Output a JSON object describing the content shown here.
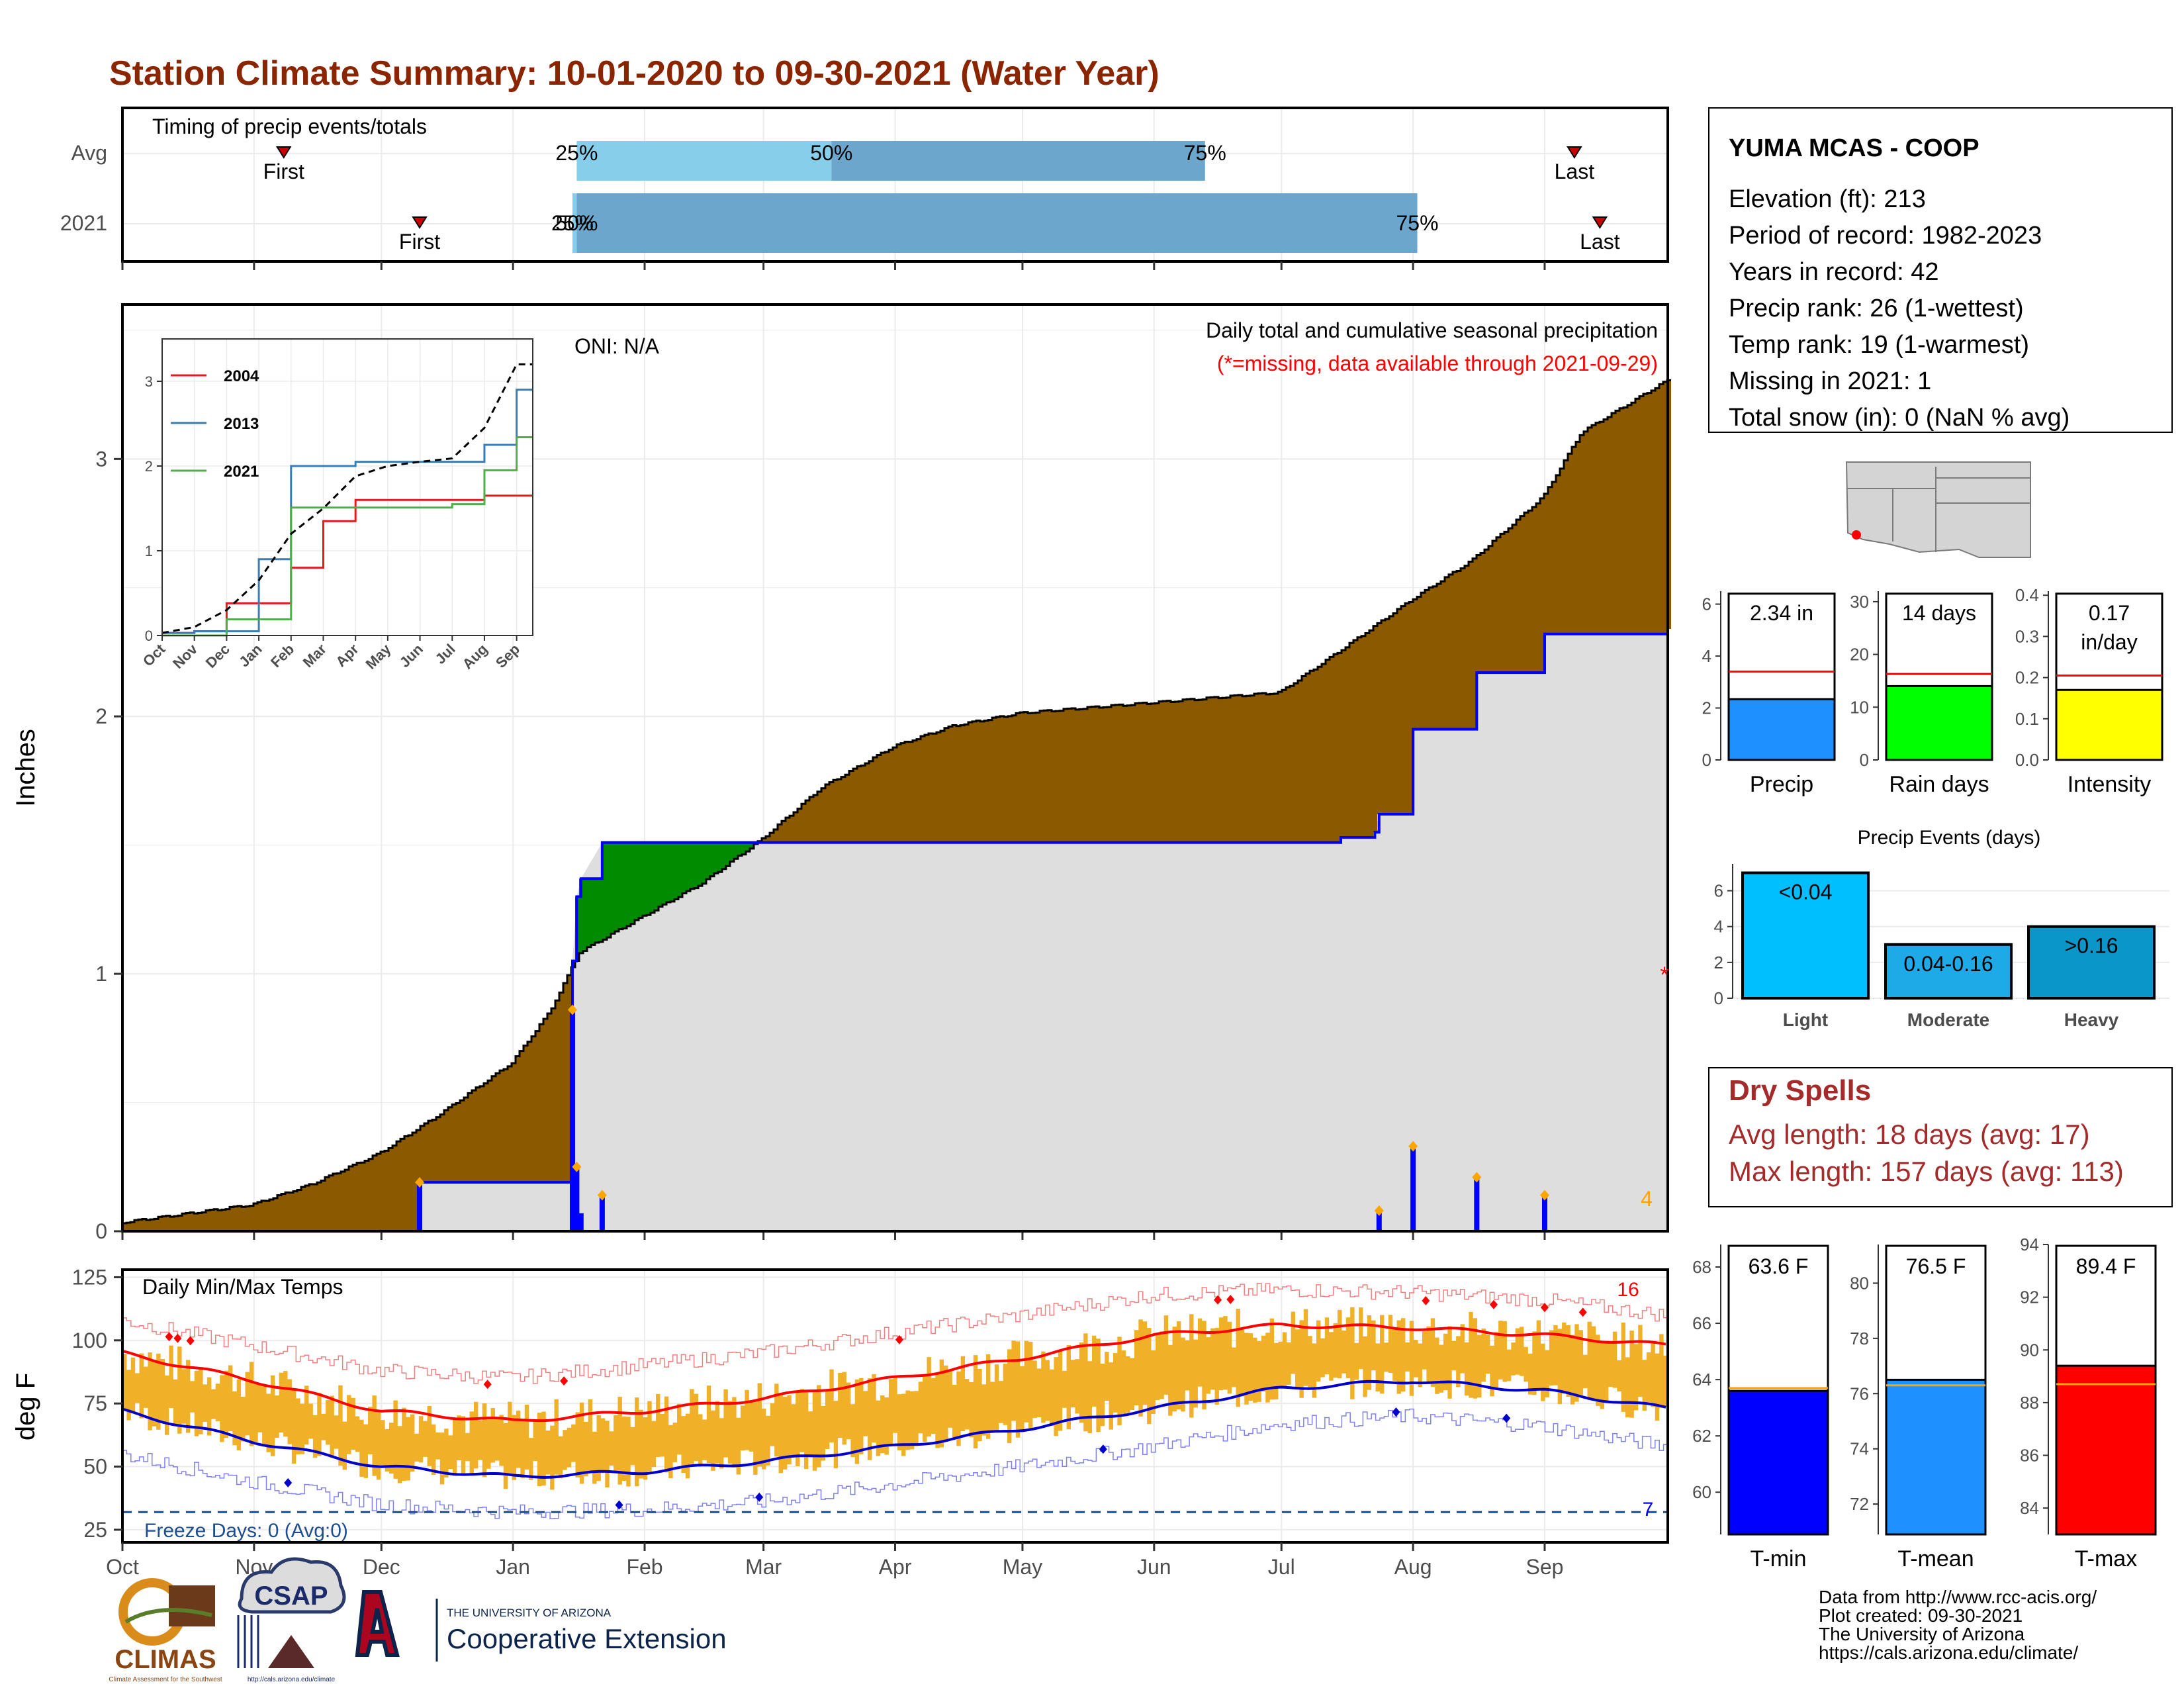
{
  "title": "Station Climate Summary: 10-01-2020 to 09-30-2021 (Water Year)",
  "colors": {
    "title": "#8B2500",
    "brown": "#8B5A00",
    "green": "#008B00",
    "blue": "#0000FF",
    "gray_fill": "#DEDEDE",
    "orange": "#F0B028",
    "light_blue_bar": "#87CEEB",
    "mid_blue_bar": "#6CA6CD",
    "red": "#FF0000",
    "dry_red": "#A52A2A"
  },
  "timing": {
    "title": "Timing of precip events/totals",
    "rows": [
      "Avg",
      "2021"
    ],
    "first_label": "First",
    "last_label": "Last",
    "avg": {
      "first": "2020-11-08",
      "last": "2021-09-08",
      "p25": "2021-01-16",
      "p50": "2021-03-17",
      "p75": "2021-06-13",
      "labels": [
        "25%",
        "50%",
        "75%"
      ]
    },
    "y2021": {
      "first": "2020-12-10",
      "last": "2021-09-14",
      "p25": "2021-01-15",
      "p50": "2021-01-16",
      "p75": "2021-08-02",
      "labels": [
        "25%",
        "50%",
        "75%"
      ]
    }
  },
  "precip_panel": {
    "ylabel": "Inches",
    "oni": "ONI: N/A",
    "subtitle": "Daily total and cumulative seasonal precipitation",
    "missing_note": "(*=missing, data available through 2021-09-29)",
    "count_label": "4",
    "missing_marker": "*",
    "yticks": [
      "0",
      "1",
      "2",
      "3"
    ]
  },
  "inset": {
    "series": [
      {
        "name": "2004",
        "color": "#E41A1C"
      },
      {
        "name": "2013",
        "color": "#377EB8"
      },
      {
        "name": "2021",
        "color": "#4DAF4A"
      }
    ],
    "xticks": [
      "Oct",
      "Nov",
      "Dec",
      "Jan",
      "Feb",
      "Mar",
      "Apr",
      "May",
      "Jun",
      "Jul",
      "Aug",
      "Sep"
    ],
    "yticks": [
      "0",
      "1",
      "2",
      "3"
    ]
  },
  "temp_panel": {
    "title": "Daily Min/Max Temps",
    "ylabel": "deg F",
    "yticks": [
      "25",
      "50",
      "75",
      "100",
      "125"
    ],
    "freeze_label": "Freeze Days: 0 (Avg:0)",
    "max_count": "16",
    "min_count": "7"
  },
  "months": [
    "Oct",
    "Nov",
    "Dec",
    "Jan",
    "Feb",
    "Mar",
    "Apr",
    "May",
    "Jun",
    "Jul",
    "Aug",
    "Sep"
  ],
  "station": {
    "name": "YUMA MCAS - COOP",
    "lines": [
      "Elevation (ft): 213",
      "Period of record: 1982-2023",
      "Years in record: 42",
      "Precip rank: 26 (1-wettest)",
      "Temp rank: 19 (1-warmest)",
      "Missing in 2021: 1",
      "Total snow (in): 0 (NaN % avg)"
    ]
  },
  "precip_stats": [
    {
      "name": "Precip",
      "label": "2.34 in",
      "value": 2.34,
      "avg": 3.4,
      "ymax": 6.5,
      "yticks": [
        "0",
        "2",
        "4",
        "6"
      ],
      "color": "#1E90FF"
    },
    {
      "name": "Rain days",
      "label": "14 days",
      "value": 14,
      "avg": 16.3,
      "ymax": 32,
      "yticks": [
        "0",
        "10",
        "20",
        "30"
      ],
      "color": "#00FF00"
    },
    {
      "name": "Intensity",
      "label1": "0.17",
      "label2": "in/day",
      "value": 0.17,
      "avg": 0.205,
      "ymax": 0.41,
      "yticks": [
        "0.0",
        "0.1",
        "0.2",
        "0.3",
        "0.4"
      ],
      "color": "#FFFF00"
    }
  ],
  "precip_events": {
    "title": "Precip Events (days)",
    "yticks": [
      "0",
      "2",
      "4",
      "6"
    ],
    "categories": [
      "Light",
      "Moderate",
      "Heavy"
    ],
    "labels": [
      "<0.04",
      "0.04-0.16",
      ">0.16"
    ],
    "values": [
      7,
      3,
      4
    ],
    "colors": [
      "#00BFFF",
      "#1EAAE6",
      "#0A96C8"
    ]
  },
  "dry_spells": {
    "title": "Dry Spells",
    "lines": [
      "Avg length: 18 days (avg: 17)",
      "Max length: 157 days (avg: 113)"
    ]
  },
  "temp_stats": [
    {
      "name": "T-min",
      "label": "63.6 F",
      "value": 63.6,
      "avg": 63.7,
      "ymin": 58.5,
      "ymax": 68.8,
      "yticks": [
        "60",
        "62",
        "64",
        "66",
        "68"
      ],
      "color": "#0000FF"
    },
    {
      "name": "T-mean",
      "label": "76.5 F",
      "value": 76.5,
      "avg": 76.3,
      "ymin": 70.9,
      "ymax": 81.4,
      "yticks": [
        "72",
        "74",
        "76",
        "78",
        "80"
      ],
      "color": "#1E90FF"
    },
    {
      "name": "T-max",
      "label": "89.4 F",
      "value": 89.4,
      "avg": 88.7,
      "ymin": 83.0,
      "ymax": 94.0,
      "yticks": [
        "84",
        "86",
        "88",
        "90",
        "92",
        "94"
      ],
      "color": "#FF0000"
    }
  ],
  "footer": {
    "lines": [
      "Data from http://www.rcc-acis.org/",
      "Plot created: 09-30-2021",
      "The University of Arizona",
      "https://cals.arizona.edu/climate/"
    ]
  },
  "logos": {
    "climas": "CLIMAS",
    "climas_small": "Climate Assessment for the Southwest",
    "csap": "CSAP",
    "csap_url": "http://cals.arizona.edu/climate",
    "ua_small": "THE UNIVERSITY OF ARIZONA",
    "ua_big": "Cooperative Extension"
  },
  "chart_data": [
    {
      "type": "area",
      "title": "Daily total and cumulative seasonal precipitation",
      "ylabel": "Inches",
      "ylim": [
        0,
        3.6
      ],
      "x_range": [
        "2020-10-01",
        "2021-09-30"
      ],
      "series": [
        {
          "name": "cumulative average",
          "points": [
            [
              "2020-10-01",
              0.03
            ],
            [
              "2020-11-01",
              0.1
            ],
            [
              "2020-11-15",
              0.18
            ],
            [
              "2020-12-01",
              0.3
            ],
            [
              "2020-12-15",
              0.45
            ],
            [
              "2021-01-01",
              0.65
            ],
            [
              "2021-01-10",
              0.85
            ],
            [
              "2021-01-17",
              1.08
            ],
            [
              "2021-02-01",
              1.22
            ],
            [
              "2021-02-15",
              1.35
            ],
            [
              "2021-03-01",
              1.52
            ],
            [
              "2021-03-15",
              1.72
            ],
            [
              "2021-04-01",
              1.88
            ],
            [
              "2021-04-15",
              1.96
            ],
            [
              "2021-05-01",
              2.01
            ],
            [
              "2021-06-01",
              2.05
            ],
            [
              "2021-07-01",
              2.09
            ],
            [
              "2021-07-15",
              2.25
            ],
            [
              "2021-08-01",
              2.45
            ],
            [
              "2021-08-15",
              2.6
            ],
            [
              "2021-09-01",
              2.85
            ],
            [
              "2021-09-10",
              3.1
            ],
            [
              "2021-09-20",
              3.2
            ],
            [
              "2021-09-30",
              3.3
            ]
          ]
        },
        {
          "name": "cumulative 2021",
          "points": [
            [
              "2020-10-01",
              0
            ],
            [
              "2020-12-10",
              0
            ],
            [
              "2020-12-10",
              0.19
            ],
            [
              "2021-01-14",
              0.19
            ],
            [
              "2021-01-15",
              1.05
            ],
            [
              "2021-01-16",
              1.3
            ],
            [
              "2021-01-17",
              1.37
            ],
            [
              "2021-01-22",
              1.51
            ],
            [
              "2021-06-30",
              1.51
            ],
            [
              "2021-07-15",
              1.53
            ],
            [
              "2021-07-23",
              1.55
            ],
            [
              "2021-07-24",
              1.62
            ],
            [
              "2021-07-31",
              1.62
            ],
            [
              "2021-08-01",
              1.95
            ],
            [
              "2021-08-15",
              1.95
            ],
            [
              "2021-08-16",
              2.17
            ],
            [
              "2021-08-31",
              2.17
            ],
            [
              "2021-09-01",
              2.32
            ],
            [
              "2021-09-30",
              2.34
            ]
          ]
        },
        {
          "name": "daily 2021",
          "points": [
            [
              "2020-12-10",
              0.19
            ],
            [
              "2021-01-15",
              0.86
            ],
            [
              "2021-01-16",
              0.25
            ],
            [
              "2021-01-17",
              0.07
            ],
            [
              "2021-01-22",
              0.14
            ],
            [
              "2021-07-24",
              0.08
            ],
            [
              "2021-08-01",
              0.33
            ],
            [
              "2021-08-16",
              0.21
            ],
            [
              "2021-09-01",
              0.14
            ]
          ]
        }
      ]
    },
    {
      "type": "line",
      "title": "inset: cumulative precipitation comparison years",
      "categories": [
        "Oct",
        "Nov",
        "Dec",
        "Jan",
        "Feb",
        "Mar",
        "Apr",
        "May",
        "Jun",
        "Jul",
        "Aug",
        "Sep"
      ],
      "ylim": [
        0,
        3.5
      ],
      "series": [
        {
          "name": "2004",
          "values": [
            0.03,
            0.05,
            0.38,
            0.38,
            0.8,
            1.35,
            1.6,
            1.6,
            1.6,
            1.6,
            1.65,
            1.65
          ]
        },
        {
          "name": "2013",
          "values": [
            0.03,
            0.05,
            0.05,
            0.9,
            2.0,
            2.0,
            2.05,
            2.05,
            2.05,
            2.05,
            2.25,
            2.9
          ]
        },
        {
          "name": "2021",
          "values": [
            0,
            0,
            0.19,
            0.19,
            1.51,
            1.51,
            1.51,
            1.51,
            1.51,
            1.55,
            1.95,
            2.34
          ]
        },
        {
          "name": "average",
          "values": [
            0.03,
            0.1,
            0.3,
            0.65,
            1.2,
            1.5,
            1.88,
            2.0,
            2.05,
            2.09,
            2.45,
            3.2
          ]
        }
      ]
    },
    {
      "type": "line",
      "title": "Daily Min/Max Temps",
      "ylabel": "deg F",
      "ylim": [
        20,
        128
      ],
      "x_range": [
        "2020-10-01",
        "2021-09-30"
      ],
      "series": [
        {
          "name": "avg max",
          "points": [
            [
              "2020-10-01",
              95
            ],
            [
              "2020-11-01",
              84
            ],
            [
              "2020-12-01",
              72
            ],
            [
              "2021-01-01",
              68
            ],
            [
              "2021-02-01",
              72
            ],
            [
              "2021-03-01",
              77
            ],
            [
              "2021-04-01",
              85
            ],
            [
              "2021-05-01",
              93
            ],
            [
              "2021-06-01",
              102
            ],
            [
              "2021-07-01",
              106
            ],
            [
              "2021-08-01",
              105
            ],
            [
              "2021-09-01",
              102
            ],
            [
              "2021-09-30",
              98
            ]
          ]
        },
        {
          "name": "avg min",
          "points": [
            [
              "2020-10-01",
              72
            ],
            [
              "2020-11-01",
              60
            ],
            [
              "2020-12-01",
              50
            ],
            [
              "2021-01-01",
              46
            ],
            [
              "2021-02-01",
              48
            ],
            [
              "2021-03-01",
              52
            ],
            [
              "2021-04-01",
              58
            ],
            [
              "2021-05-01",
              65
            ],
            [
              "2021-06-01",
              73
            ],
            [
              "2021-07-01",
              81
            ],
            [
              "2021-08-01",
              84
            ],
            [
              "2021-09-01",
              80
            ],
            [
              "2021-09-30",
              73
            ]
          ]
        },
        {
          "name": "record max",
          "points": [
            [
              "2020-10-01",
              108
            ],
            [
              "2020-11-01",
              98
            ],
            [
              "2020-12-01",
              88
            ],
            [
              "2021-01-01",
              85
            ],
            [
              "2021-02-01",
              90
            ],
            [
              "2021-03-01",
              95
            ],
            [
              "2021-04-01",
              103
            ],
            [
              "2021-05-01",
              110
            ],
            [
              "2021-06-01",
              118
            ],
            [
              "2021-07-01",
              120
            ],
            [
              "2021-08-01",
              119
            ],
            [
              "2021-09-01",
              116
            ],
            [
              "2021-09-30",
              110
            ]
          ]
        },
        {
          "name": "record min",
          "points": [
            [
              "2020-10-01",
              55
            ],
            [
              "2020-11-01",
              44
            ],
            [
              "2020-12-01",
              35
            ],
            [
              "2021-01-01",
              32
            ],
            [
              "2021-02-01",
              33
            ],
            [
              "2021-03-01",
              36
            ],
            [
              "2021-04-01",
              43
            ],
            [
              "2021-05-01",
              50
            ],
            [
              "2021-06-01",
              58
            ],
            [
              "2021-07-01",
              67
            ],
            [
              "2021-08-01",
              70
            ],
            [
              "2021-09-01",
              66
            ],
            [
              "2021-09-30",
              58
            ]
          ]
        }
      ],
      "freeze_line": 32,
      "annotations": {
        "freeze_days": 0,
        "freeze_avg": 0,
        "record_highs": 16,
        "record_lows": 7
      }
    },
    {
      "type": "bar",
      "title": "Precip Events (days)",
      "categories": [
        "Light",
        "Moderate",
        "Heavy"
      ],
      "values": [
        7,
        3,
        4
      ]
    }
  ]
}
